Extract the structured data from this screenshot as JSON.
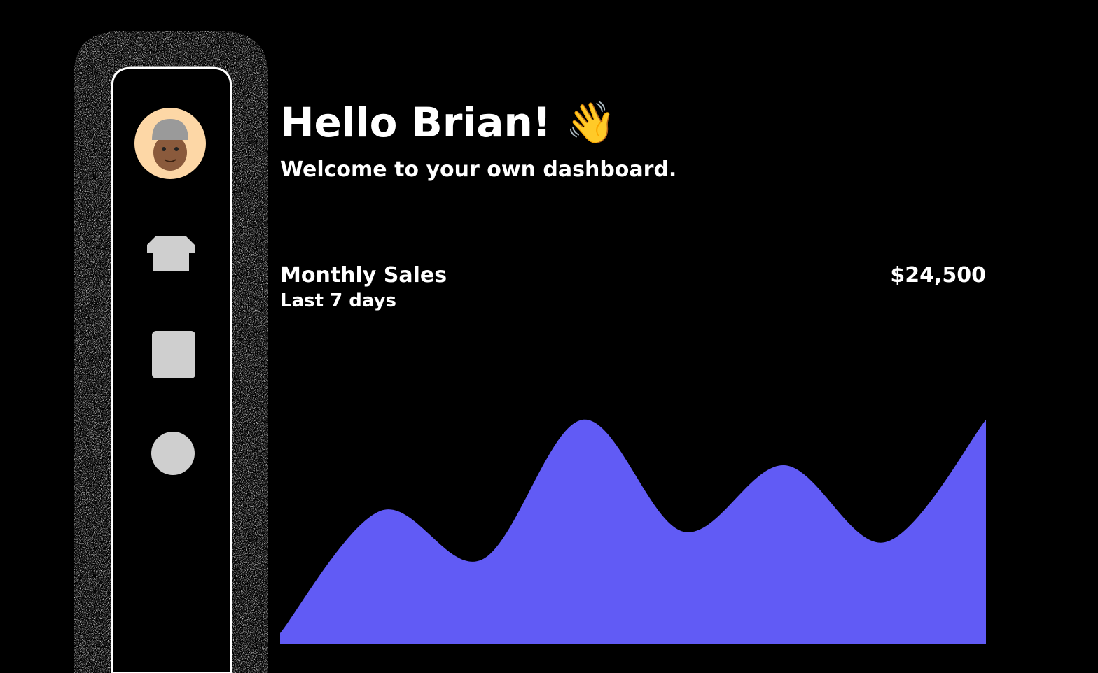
{
  "header": {
    "title": "Hello Brian! 👋",
    "subtitle": "Welcome to your own dashboard."
  },
  "stats": {
    "label": "Monthly Sales",
    "sublabel": "Last 7 days",
    "value": "$24,500"
  },
  "chart_data": {
    "type": "area",
    "values": [
      15,
      190,
      120,
      320,
      160,
      255,
      145,
      320
    ],
    "color": "#615bf5",
    "ylim": [
      0,
      340
    ]
  }
}
